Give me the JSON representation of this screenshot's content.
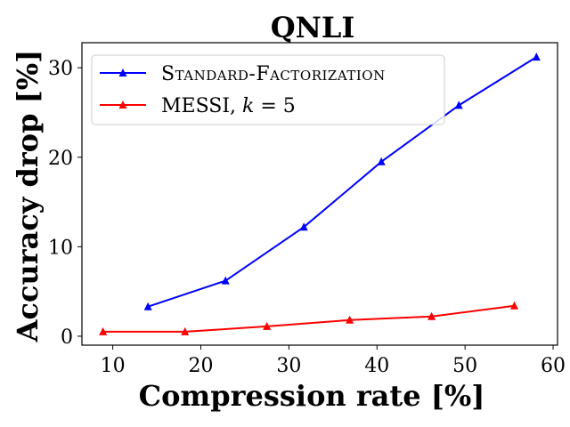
{
  "chart_data": {
    "type": "line",
    "title": "QNLI",
    "xlabel": "Compression rate [%]",
    "ylabel": "Accuracy drop [%]",
    "xlim": [
      6.5,
      60.5
    ],
    "ylim": [
      -1.0,
      32.8
    ],
    "xticks": [
      10,
      20,
      30,
      40,
      50,
      60
    ],
    "yticks": [
      0,
      10,
      20,
      30
    ],
    "xtick_labels": [
      "10",
      "20",
      "30",
      "40",
      "50",
      "60"
    ],
    "ytick_labels": [
      "0",
      "10",
      "20",
      "30"
    ],
    "grid": false,
    "legend_position": "top-left",
    "series": [
      {
        "name": "Standard-Factorization",
        "color": "#0000ff",
        "marker": "triangle",
        "x": [
          14.0,
          22.8,
          31.7,
          40.5,
          49.3,
          58.1
        ],
        "y": [
          3.3,
          6.2,
          12.2,
          19.5,
          25.8,
          31.2
        ]
      },
      {
        "name": "MESSI, k = 5",
        "legend_parts": {
          "text": "MESSI, ",
          "var": "k",
          "eq": " = 5"
        },
        "color": "#ff0000",
        "marker": "triangle",
        "x": [
          8.9,
          18.2,
          27.5,
          36.9,
          46.2,
          55.6
        ],
        "y": [
          0.5,
          0.5,
          1.1,
          1.8,
          2.2,
          3.4
        ]
      }
    ]
  }
}
